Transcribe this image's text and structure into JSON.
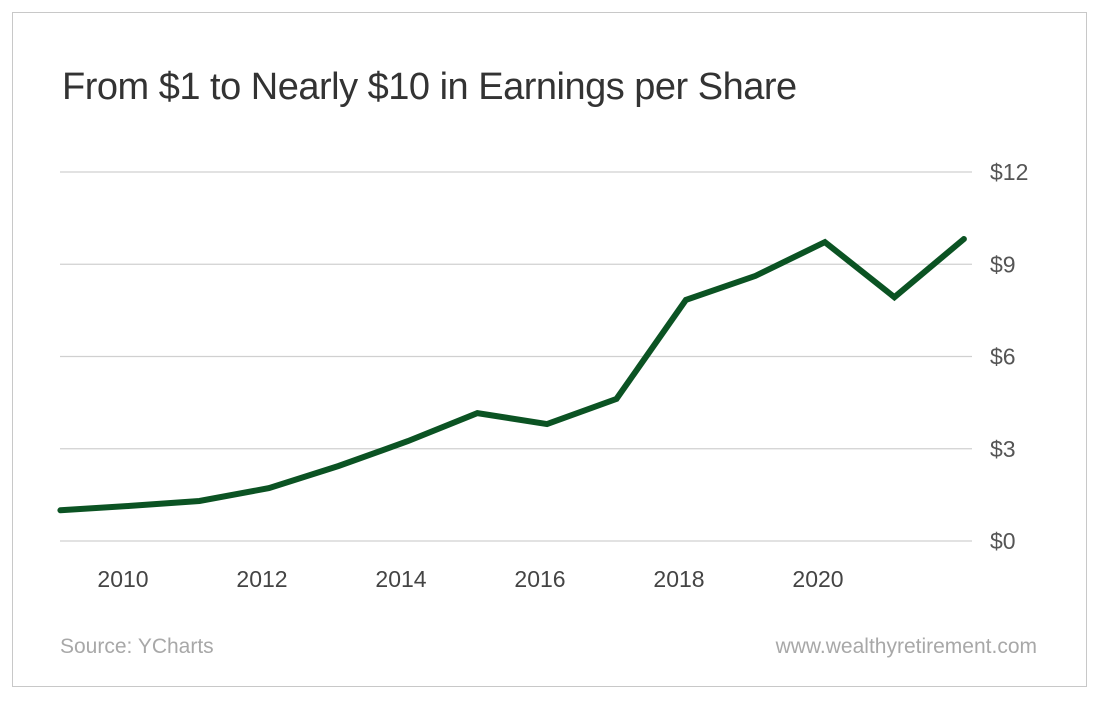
{
  "chart_data": {
    "type": "line",
    "title": "From $1 to Nearly $10 in Earnings per Share",
    "xlabel": "",
    "ylabel": "",
    "x": [
      2009,
      2010,
      2011,
      2012,
      2013,
      2014,
      2015,
      2016,
      2017,
      2018,
      2019,
      2020,
      2021,
      2022
    ],
    "series": [
      {
        "values": [
          1.0,
          1.14,
          1.3,
          1.72,
          2.44,
          3.25,
          4.16,
          3.8,
          4.62,
          7.84,
          8.62,
          9.72,
          7.93,
          9.82
        ],
        "color": "#0b5323"
      }
    ],
    "ylim": [
      0,
      12
    ],
    "yticks": [
      0,
      3,
      6,
      9,
      12
    ],
    "ytick_labels": [
      "$0",
      "$3",
      "$6",
      "$9",
      "$12"
    ],
    "xticks": [
      2010,
      2012,
      2014,
      2016,
      2018,
      2020
    ],
    "xtick_labels": [
      "2010",
      "2012",
      "2014",
      "2016",
      "2018",
      "2020"
    ],
    "grid": "horizontal",
    "gridline_color": "#d0d0d0"
  },
  "footer": {
    "source": "Source: YCharts",
    "website": "www.wealthyretirement.com"
  }
}
